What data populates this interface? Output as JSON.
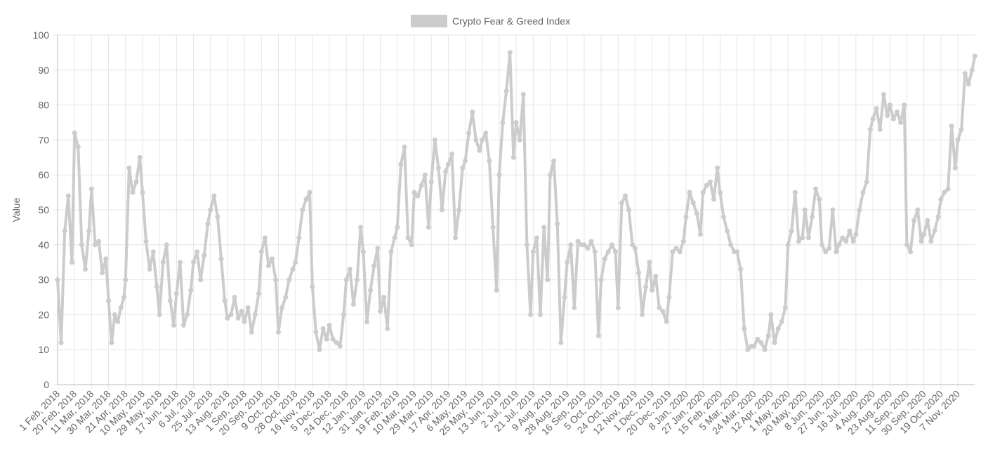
{
  "chart_data": {
    "type": "line",
    "y_label": "Value",
    "color": "#cccccc",
    "grid": true,
    "ylim": [
      0,
      100
    ],
    "yticks": [
      0,
      10,
      20,
      30,
      40,
      50,
      60,
      70,
      80,
      90,
      100
    ],
    "xticks": [
      "1 Feb, 2018",
      "20 Feb, 2018",
      "11 Mar, 2018",
      "30 Mar, 2018",
      "21 Apr, 2018",
      "10 May, 2018",
      "29 May, 2018",
      "17 Jun, 2018",
      "6 Jul, 2018",
      "25 Jul, 2018",
      "13 Aug, 2018",
      "1 Sep, 2018",
      "20 Sep, 2018",
      "9 Oct, 2018",
      "28 Oct, 2018",
      "16 Nov, 2018",
      "5 Dec, 2018",
      "24 Dec, 2018",
      "12 Jan, 2019",
      "31 Jan, 2019",
      "19 Feb, 2019",
      "10 Mar, 2019",
      "29 Mar, 2019",
      "17 Apr, 2019",
      "6 May, 2019",
      "25 May, 2019",
      "13 Jun, 2019",
      "2 Jul, 2019",
      "21 Jul, 2019",
      "9 Aug, 2019",
      "28 Aug, 2019",
      "16 Sep, 2019",
      "5 Oct, 2019",
      "24 Oct, 2019",
      "12 Nov, 2019",
      "1 Dec, 2019",
      "20 Dec, 2019",
      "8 Jan, 2020",
      "27 Jan, 2020",
      "15 Feb, 2020",
      "5 Mar, 2020",
      "24 Mar, 2020",
      "12 Apr, 2020",
      "1 May, 2020",
      "20 May, 2020",
      "8 Jun, 2020",
      "27 Jun, 2020",
      "16 Jul, 2020",
      "4 Aug, 2020",
      "23 Aug, 2020",
      "11 Sep, 2020",
      "30 Sep, 2020",
      "19 Oct, 2020",
      "7 Nov, 2020"
    ],
    "x": [
      "1 Feb, 2018",
      "5 Feb, 2018",
      "9 Feb, 2018",
      "13 Feb, 2018",
      "17 Feb, 2018",
      "20 Feb, 2018",
      "24 Feb, 2018",
      "28 Feb, 2018",
      "4 Mar, 2018",
      "8 Mar, 2018",
      "11 Mar, 2018",
      "15 Mar, 2018",
      "19 Mar, 2018",
      "23 Mar, 2018",
      "27 Mar, 2018",
      "30 Mar, 2018",
      "3 Apr, 2018",
      "7 Apr, 2018",
      "11 Apr, 2018",
      "15 Apr, 2018",
      "19 Apr, 2018",
      "21 Apr, 2018",
      "25 Apr, 2018",
      "29 Apr, 2018",
      "3 May, 2018",
      "7 May, 2018",
      "10 May, 2018",
      "14 May, 2018",
      "18 May, 2018",
      "22 May, 2018",
      "26 May, 2018",
      "29 May, 2018",
      "2 Jun, 2018",
      "6 Jun, 2018",
      "10 Jun, 2018",
      "14 Jun, 2018",
      "17 Jun, 2018",
      "21 Jun, 2018",
      "25 Jun, 2018",
      "29 Jun, 2018",
      "3 Jul, 2018",
      "6 Jul, 2018",
      "10 Jul, 2018",
      "14 Jul, 2018",
      "18 Jul, 2018",
      "22 Jul, 2018",
      "25 Jul, 2018",
      "29 Jul, 2018",
      "2 Aug, 2018",
      "6 Aug, 2018",
      "10 Aug, 2018",
      "13 Aug, 2018",
      "17 Aug, 2018",
      "21 Aug, 2018",
      "25 Aug, 2018",
      "29 Aug, 2018",
      "1 Sep, 2018",
      "5 Sep, 2018",
      "9 Sep, 2018",
      "13 Sep, 2018",
      "17 Sep, 2018",
      "20 Sep, 2018",
      "24 Sep, 2018",
      "28 Sep, 2018",
      "2 Oct, 2018",
      "6 Oct, 2018",
      "9 Oct, 2018",
      "13 Oct, 2018",
      "17 Oct, 2018",
      "21 Oct, 2018",
      "25 Oct, 2018",
      "28 Oct, 2018",
      "1 Nov, 2018",
      "5 Nov, 2018",
      "9 Nov, 2018",
      "13 Nov, 2018",
      "16 Nov, 2018",
      "20 Nov, 2018",
      "24 Nov, 2018",
      "28 Nov, 2018",
      "2 Dec, 2018",
      "5 Dec, 2018",
      "9 Dec, 2018",
      "13 Dec, 2018",
      "17 Dec, 2018",
      "21 Dec, 2018",
      "24 Dec, 2018",
      "28 Dec, 2018",
      "1 Jan, 2019",
      "5 Jan, 2019",
      "9 Jan, 2019",
      "12 Jan, 2019",
      "16 Jan, 2019",
      "20 Jan, 2019",
      "24 Jan, 2019",
      "28 Jan, 2019",
      "31 Jan, 2019",
      "4 Feb, 2019",
      "8 Feb, 2019",
      "12 Feb, 2019",
      "16 Feb, 2019",
      "19 Feb, 2019",
      "23 Feb, 2019",
      "27 Feb, 2019",
      "3 Mar, 2019",
      "7 Mar, 2019",
      "10 Mar, 2019",
      "14 Mar, 2019",
      "18 Mar, 2019",
      "22 Mar, 2019",
      "26 Mar, 2019",
      "29 Mar, 2019",
      "2 Apr, 2019",
      "6 Apr, 2019",
      "10 Apr, 2019",
      "14 Apr, 2019",
      "17 Apr, 2019",
      "21 Apr, 2019",
      "25 Apr, 2019",
      "29 Apr, 2019",
      "3 May, 2019",
      "6 May, 2019",
      "10 May, 2019",
      "14 May, 2019",
      "18 May, 2019",
      "22 May, 2019",
      "25 May, 2019",
      "29 May, 2019",
      "2 Jun, 2019",
      "6 Jun, 2019",
      "10 Jun, 2019",
      "13 Jun, 2019",
      "17 Jun, 2019",
      "21 Jun, 2019",
      "25 Jun, 2019",
      "29 Jun, 2019",
      "2 Jul, 2019",
      "6 Jul, 2019",
      "10 Jul, 2019",
      "14 Jul, 2019",
      "18 Jul, 2019",
      "21 Jul, 2019",
      "25 Jul, 2019",
      "29 Jul, 2019",
      "2 Aug, 2019",
      "6 Aug, 2019",
      "9 Aug, 2019",
      "13 Aug, 2019",
      "17 Aug, 2019",
      "21 Aug, 2019",
      "25 Aug, 2019",
      "28 Aug, 2019",
      "1 Sep, 2019",
      "5 Sep, 2019",
      "9 Sep, 2019",
      "13 Sep, 2019",
      "16 Sep, 2019",
      "20 Sep, 2019",
      "24 Sep, 2019",
      "28 Sep, 2019",
      "2 Oct, 2019",
      "5 Oct, 2019",
      "9 Oct, 2019",
      "13 Oct, 2019",
      "17 Oct, 2019",
      "21 Oct, 2019",
      "24 Oct, 2019",
      "28 Oct, 2019",
      "1 Nov, 2019",
      "5 Nov, 2019",
      "9 Nov, 2019",
      "12 Nov, 2019",
      "16 Nov, 2019",
      "20 Nov, 2019",
      "24 Nov, 2019",
      "28 Nov, 2019",
      "1 Dec, 2019",
      "5 Dec, 2019",
      "9 Dec, 2019",
      "13 Dec, 2019",
      "17 Dec, 2019",
      "20 Dec, 2019",
      "24 Dec, 2019",
      "28 Dec, 2019",
      "1 Jan, 2020",
      "5 Jan, 2020",
      "8 Jan, 2020",
      "12 Jan, 2020",
      "16 Jan, 2020",
      "20 Jan, 2020",
      "24 Jan, 2020",
      "27 Jan, 2020",
      "31 Jan, 2020",
      "4 Feb, 2020",
      "8 Feb, 2020",
      "12 Feb, 2020",
      "15 Feb, 2020",
      "19 Feb, 2020",
      "23 Feb, 2020",
      "27 Feb, 2020",
      "2 Mar, 2020",
      "5 Mar, 2020",
      "9 Mar, 2020",
      "13 Mar, 2020",
      "17 Mar, 2020",
      "21 Mar, 2020",
      "24 Mar, 2020",
      "28 Mar, 2020",
      "1 Apr, 2020",
      "5 Apr, 2020",
      "9 Apr, 2020",
      "12 Apr, 2020",
      "16 Apr, 2020",
      "20 Apr, 2020",
      "24 Apr, 2020",
      "28 Apr, 2020",
      "1 May, 2020",
      "5 May, 2020",
      "9 May, 2020",
      "13 May, 2020",
      "17 May, 2020",
      "20 May, 2020",
      "24 May, 2020",
      "28 May, 2020",
      "1 Jun, 2020",
      "5 Jun, 2020",
      "8 Jun, 2020",
      "12 Jun, 2020",
      "16 Jun, 2020",
      "20 Jun, 2020",
      "24 Jun, 2020",
      "27 Jun, 2020",
      "1 Jul, 2020",
      "5 Jul, 2020",
      "9 Jul, 2020",
      "13 Jul, 2020",
      "16 Jul, 2020",
      "20 Jul, 2020",
      "24 Jul, 2020",
      "28 Jul, 2020",
      "1 Aug, 2020",
      "4 Aug, 2020",
      "8 Aug, 2020",
      "12 Aug, 2020",
      "16 Aug, 2020",
      "20 Aug, 2020",
      "23 Aug, 2020",
      "27 Aug, 2020",
      "31 Aug, 2020",
      "4 Sep, 2020",
      "8 Sep, 2020",
      "11 Sep, 2020",
      "15 Sep, 2020",
      "19 Sep, 2020",
      "23 Sep, 2020",
      "27 Sep, 2020",
      "30 Sep, 2020",
      "4 Oct, 2020",
      "8 Oct, 2020",
      "12 Oct, 2020",
      "16 Oct, 2020",
      "19 Oct, 2020",
      "23 Oct, 2020",
      "27 Oct, 2020",
      "31 Oct, 2020",
      "4 Nov, 2020",
      "7 Nov, 2020",
      "11 Nov, 2020",
      "15 Nov, 2020",
      "19 Nov, 2020",
      "23 Nov, 2020",
      "26 Nov, 2020"
    ],
    "series": [
      {
        "name": "Crypto Fear & Greed Index",
        "color": "#cccccc",
        "values": [
          30,
          12,
          44,
          54,
          35,
          72,
          68,
          40,
          33,
          44,
          56,
          40,
          41,
          32,
          36,
          24,
          12,
          20,
          18,
          22,
          25,
          30,
          62,
          55,
          58,
          65,
          55,
          41,
          33,
          38,
          28,
          20,
          35,
          40,
          24,
          17,
          26,
          35,
          17,
          20,
          27,
          35,
          38,
          30,
          37,
          46,
          50,
          54,
          48,
          36,
          24,
          19,
          20,
          25,
          19,
          21,
          18,
          22,
          15,
          20,
          26,
          38,
          42,
          34,
          36,
          30,
          15,
          22,
          25,
          30,
          33,
          35,
          42,
          50,
          53,
          55,
          28,
          15,
          10,
          16,
          13,
          17,
          13,
          12,
          11,
          20,
          30,
          33,
          23,
          30,
          45,
          38,
          18,
          27,
          34,
          39,
          21,
          25,
          16,
          38,
          42,
          45,
          63,
          68,
          42,
          40,
          55,
          54,
          57,
          60,
          45,
          58,
          70,
          62,
          50,
          61,
          63,
          66,
          42,
          50,
          62,
          64,
          72,
          78,
          70,
          67,
          70,
          72,
          64,
          45,
          27,
          60,
          75,
          84,
          95,
          65,
          75,
          70,
          83,
          40,
          20,
          38,
          42,
          20,
          45,
          30,
          60,
          64,
          46,
          12,
          25,
          35,
          40,
          22,
          41,
          40,
          40,
          39,
          41,
          38,
          14,
          30,
          36,
          38,
          40,
          38,
          22,
          52,
          54,
          50,
          40,
          39,
          32,
          20,
          28,
          35,
          27,
          31,
          22,
          21,
          18,
          25,
          38,
          39,
          38,
          41,
          48,
          55,
          52,
          49,
          43,
          55,
          57,
          58,
          53,
          62,
          55,
          48,
          44,
          40,
          38,
          38,
          33,
          16,
          10,
          11,
          11,
          13,
          12,
          10,
          14,
          20,
          12,
          16,
          18,
          22,
          40,
          44,
          55,
          41,
          42,
          50,
          42,
          48,
          56,
          53,
          40,
          38,
          39,
          50,
          38,
          40,
          42,
          41,
          44,
          41,
          43,
          50,
          55,
          58,
          73,
          76,
          79,
          73,
          83,
          77,
          80,
          76,
          78,
          75,
          80,
          40,
          38,
          47,
          50,
          41,
          43,
          47,
          41,
          44,
          48,
          53,
          55,
          56,
          74,
          62,
          70,
          73,
          89,
          86,
          90,
          94
        ]
      }
    ]
  }
}
